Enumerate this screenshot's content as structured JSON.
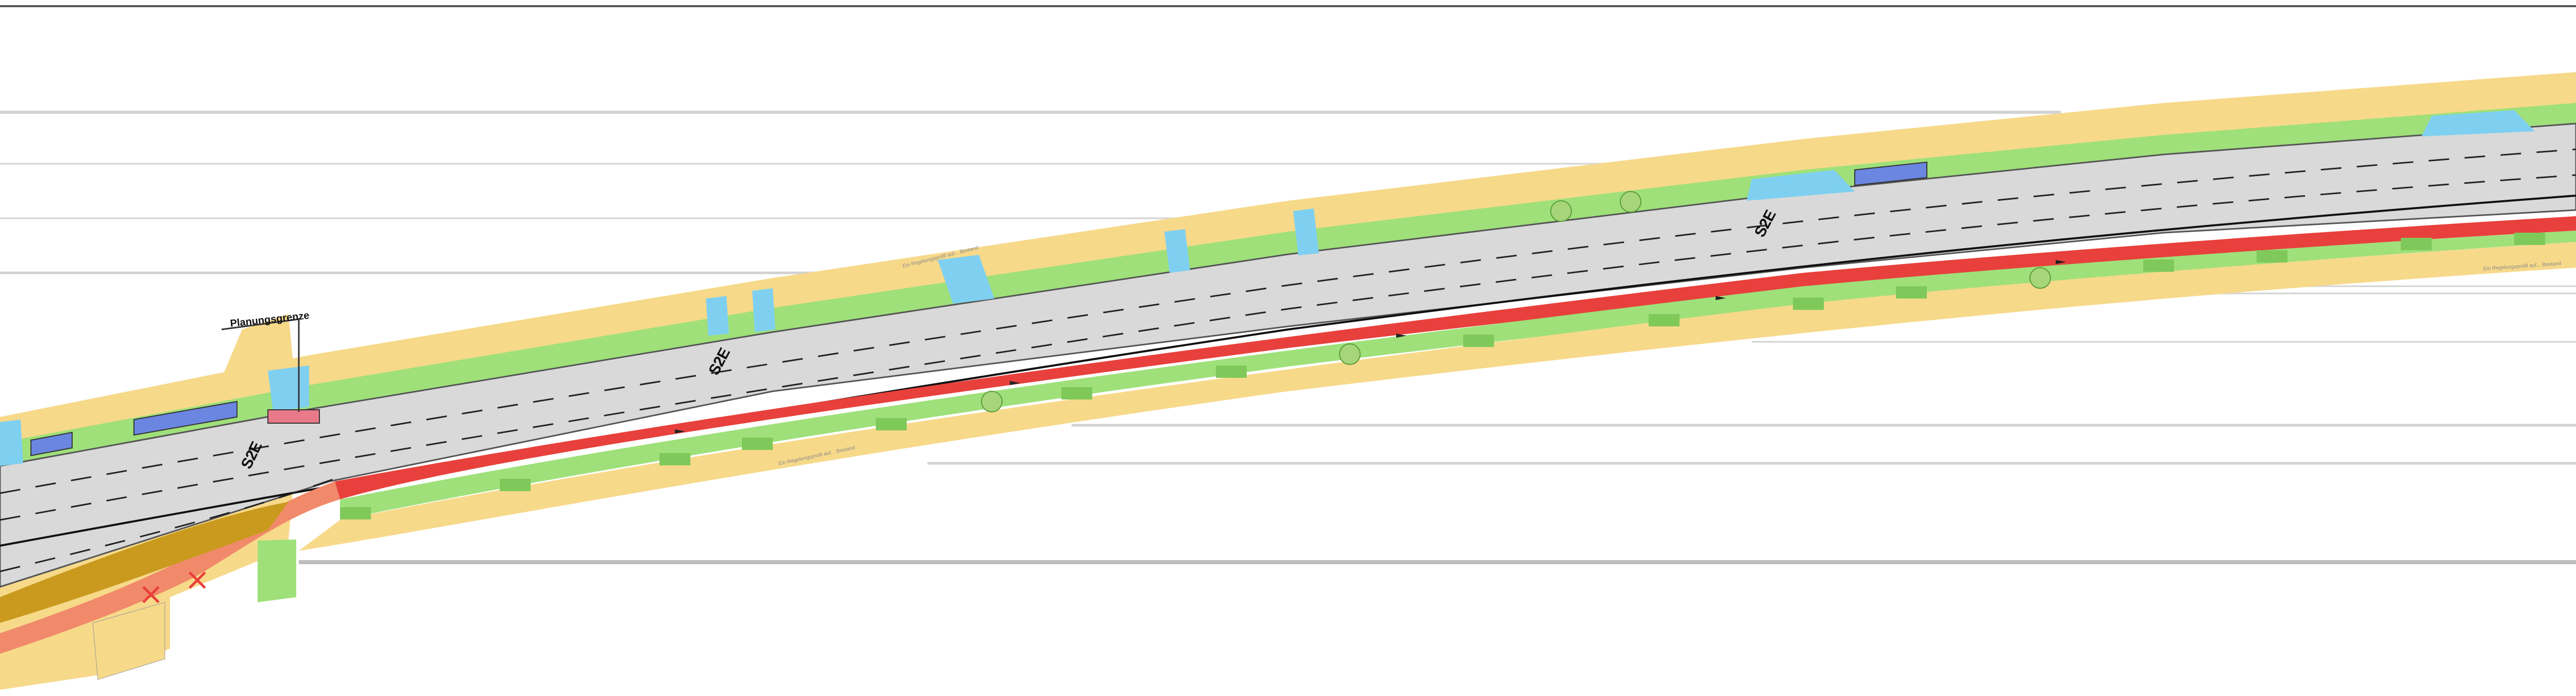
{
  "plan": {
    "boundary_label": "Planungsgrenze",
    "road_labels": [
      "S2E",
      "S2E",
      "S2E"
    ],
    "note_labels": [
      "Ein Regelungsprofil auf... Bestand",
      "Ein Regelungsprofil auf... Bestand",
      "Ein Regelungsprofil auf... Bestand"
    ]
  },
  "colors": {
    "road": "#d9d9d9",
    "road_edge": "#555555",
    "verge_green": "#9fe07a",
    "verge_dark_green": "#7fc95a",
    "shoulder_yellow": "#f7d98a",
    "bike_lane_red": "#e8403c",
    "bike_lane_orange": "#f08a6a",
    "water_blue": "#7fd0f0",
    "parking_blue": "#6b86e0",
    "curb_dark": "#c99a1e",
    "tree_green": "#9ccc65"
  },
  "icons": {
    "tree": "tree-icon",
    "removal": "cross-icon",
    "direction": "arrow-icon",
    "parking": "parking-bay-icon"
  }
}
